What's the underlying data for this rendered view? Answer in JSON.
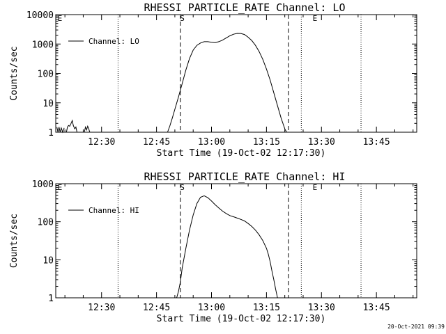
{
  "chart_data": [
    {
      "type": "line",
      "title": "RHESSI PARTICLE_RATE Channel: LO",
      "xlabel": "Start Time (19-Oct-02 12:17:30)",
      "ylabel": "Counts/sec",
      "yscale": "log",
      "ylim": [
        1,
        10000
      ],
      "xlim_minutes": [
        17.5,
        116
      ],
      "x_ticks": [
        {
          "label": "12:30",
          "minute": 30
        },
        {
          "label": "12:45",
          "minute": 45
        },
        {
          "label": "13:00",
          "minute": 60
        },
        {
          "label": "13:15",
          "minute": 75
        },
        {
          "label": "13:30",
          "minute": 90
        },
        {
          "label": "13:45",
          "minute": 105
        }
      ],
      "y_ticks": [
        {
          "label": "1",
          "value": 1
        },
        {
          "label": "10",
          "value": 10
        },
        {
          "label": "100",
          "value": 100
        },
        {
          "label": "1000",
          "value": 1000
        },
        {
          "label": "10000",
          "value": 10000
        }
      ],
      "legend": "Channel: LO",
      "legend_position": "top-left",
      "markers": [
        {
          "label": "E",
          "minute": 18.0
        },
        {
          "label": "S",
          "minute": 51.4
        },
        {
          "label": "E",
          "minute": 87.6
        }
      ],
      "dotted_lines_minutes": [
        34.5,
        84.5,
        100.8
      ],
      "dashed_lines_minutes": [
        51.5,
        81.0
      ],
      "series": [
        {
          "name": "Channel: LO",
          "x": [
            17.8,
            18.3,
            18.6,
            19.0,
            19.4,
            19.9,
            20.4,
            20.9,
            21.3,
            21.7,
            22.2,
            22.6,
            23.1,
            23.5,
            23.8,
            24.2,
            24.6,
            25.1,
            25.5,
            25.8,
            26.1,
            26.4,
            26.8
          ],
          "y": [
            1,
            1.4,
            1,
            1.4,
            1.1,
            1.2,
            1,
            1.9,
            1.8,
            1,
            1.5,
            2.5,
            1.2,
            1.5,
            1,
            1,
            1.2,
            1.4,
            1.8,
            1,
            1.2,
            1.6,
            1
          ],
          "segments": [
            {
              "x": [
                17.8,
                18.1,
                18.4,
                18.7,
                19.0,
                19.4,
                19.8
              ],
              "y": [
                1.5,
                1,
                1.5,
                1,
                1.4,
                1,
                1.4
              ]
            },
            {
              "x": [
                20.4,
                20.7,
                21.0,
                21.3,
                21.6,
                22.0,
                22.3,
                22.7,
                23.0,
                23.3
              ],
              "y": [
                1,
                1.5,
                1.7,
                1.6,
                1.9,
                2.5,
                1.7,
                1.3,
                1.5,
                1
              ]
            },
            {
              "x": [
                25.3,
                25.6,
                25.9,
                26.2,
                26.5,
                26.8
              ],
              "y": [
                1,
                1.5,
                1.2,
                1.6,
                1.3,
                1
              ]
            }
          ],
          "main": {
            "x": [
              48.0,
              48.6,
              49.3,
              50.0,
              51.0,
              52.0,
              53.0,
              54.0,
              55.0,
              56.0,
              57.0,
              58.0,
              59.0,
              60.0,
              61.0,
              62.0,
              63.0,
              64.0,
              65.0,
              66.0,
              67.0,
              68.0,
              69.0,
              70.0,
              71.0,
              72.0,
              73.0,
              74.0,
              75.0,
              76.0,
              77.0,
              78.0,
              79.0,
              80.0,
              80.5
            ],
            "y": [
              1,
              1.6,
              3,
              6,
              16,
              45,
              130,
              320,
              620,
              900,
              1080,
              1200,
              1200,
              1150,
              1120,
              1200,
              1350,
              1600,
              1900,
              2150,
              2300,
              2280,
              2100,
              1700,
              1300,
              900,
              550,
              300,
              140,
              60,
              22,
              8,
              3,
              1.3,
              1
            ]
          }
        }
      ]
    },
    {
      "type": "line",
      "title": "RHESSI PARTICLE_RATE Channel: HI",
      "xlabel": "Start Time (19-Oct-02 12:17:30)",
      "ylabel": "Counts/sec",
      "yscale": "log",
      "ylim": [
        1,
        1000
      ],
      "xlim_minutes": [
        17.5,
        116
      ],
      "x_ticks": [
        {
          "label": "12:30",
          "minute": 30
        },
        {
          "label": "12:45",
          "minute": 45
        },
        {
          "label": "13:00",
          "minute": 60
        },
        {
          "label": "13:15",
          "minute": 75
        },
        {
          "label": "13:30",
          "minute": 90
        },
        {
          "label": "13:45",
          "minute": 105
        }
      ],
      "y_ticks": [
        {
          "label": "1",
          "value": 1
        },
        {
          "label": "10",
          "value": 10
        },
        {
          "label": "100",
          "value": 100
        },
        {
          "label": "1000",
          "value": 1000
        }
      ],
      "legend": "Channel: HI",
      "legend_position": "top-left",
      "markers": [
        {
          "label": "E",
          "minute": 18.0
        },
        {
          "label": "S",
          "minute": 51.4
        },
        {
          "label": "E",
          "minute": 87.6
        }
      ],
      "dotted_lines_minutes": [
        34.5,
        84.5,
        100.8
      ],
      "dashed_lines_minutes": [
        51.5,
        81.0
      ],
      "series": [
        {
          "name": "Channel: HI",
          "main": {
            "x": [
              50.5,
              51.0,
              51.5,
              52.0,
              53.0,
              54.0,
              55.0,
              56.0,
              57.0,
              58.0,
              59.0,
              60.0,
              61.0,
              62.0,
              63.0,
              64.0,
              65.0,
              66.0,
              67.0,
              68.0,
              69.0,
              70.0,
              71.0,
              72.0,
              73.0,
              74.0,
              75.0,
              75.5,
              76.0,
              76.5,
              77.0,
              77.5,
              78.0
            ],
            "y": [
              1,
              1.5,
              2.6,
              6,
              20,
              60,
              150,
              300,
              440,
              480,
              430,
              350,
              280,
              230,
              190,
              165,
              145,
              135,
              125,
              115,
              105,
              90,
              75,
              60,
              45,
              32,
              20,
              14,
              9,
              5,
              3,
              1.7,
              1
            ]
          }
        }
      ]
    }
  ],
  "footer": {
    "timestamp": "20-Oct-2021 09:39"
  }
}
